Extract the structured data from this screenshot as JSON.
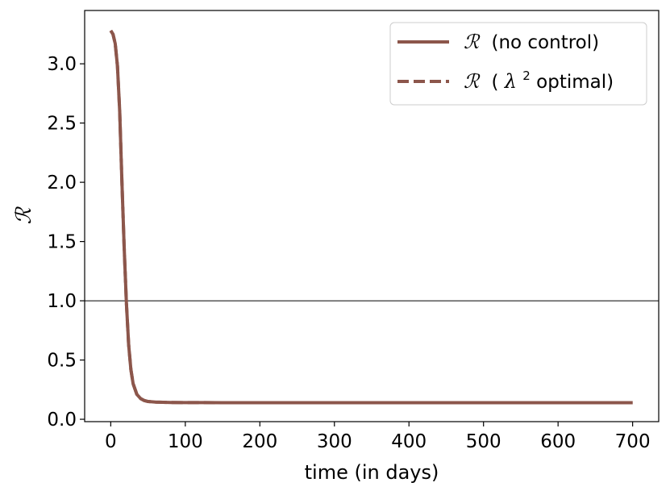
{
  "chart_data": {
    "type": "line",
    "xlabel": "time (in days)",
    "ylabel": "ℛ",
    "xlim": [
      -35,
      735
    ],
    "ylim": [
      -0.02,
      3.45
    ],
    "xticks": [
      0,
      100,
      200,
      300,
      400,
      500,
      600,
      700
    ],
    "yticks": [
      0.0,
      0.5,
      1.0,
      1.5,
      2.0,
      2.5,
      3.0
    ],
    "xtick_labels": [
      "0",
      "100",
      "200",
      "300",
      "400",
      "500",
      "600",
      "700"
    ],
    "ytick_labels": [
      "0.0",
      "0.5",
      "1.0",
      "1.5",
      "2.0",
      "2.5",
      "3.0"
    ],
    "reference_line": {
      "y": 1.0,
      "color": "#000000"
    },
    "legend_position": "top-right",
    "grid": false,
    "series": [
      {
        "name": "ℛ (no control)",
        "legend_symbol": "ℛ",
        "legend_text": "(no control)",
        "style": "solid",
        "color": "#8c564b",
        "x": [
          0,
          3,
          6,
          9,
          12,
          15,
          18,
          21,
          24,
          27,
          30,
          35,
          40,
          45,
          50,
          60,
          70,
          80,
          100,
          150,
          200,
          300,
          400,
          500,
          600,
          700
        ],
        "y": [
          3.28,
          3.25,
          3.17,
          2.98,
          2.6,
          2.0,
          1.45,
          0.98,
          0.63,
          0.42,
          0.3,
          0.21,
          0.175,
          0.158,
          0.15,
          0.145,
          0.143,
          0.142,
          0.141,
          0.14,
          0.14,
          0.14,
          0.14,
          0.14,
          0.14,
          0.14
        ]
      },
      {
        "name": "ℛ (λ² optimal)",
        "legend_symbol": "ℛ",
        "legend_text_before": "(",
        "legend_lambda": "λ",
        "legend_sup": "2",
        "legend_text_after": " optimal)",
        "style": "dashed",
        "color": "#8c564b",
        "x": [
          0,
          3,
          6,
          9,
          12,
          15,
          18,
          21,
          24,
          27,
          30,
          35,
          40,
          45,
          50,
          60,
          70,
          80,
          100,
          150,
          200,
          300,
          400,
          500,
          600,
          700
        ],
        "y": [
          3.28,
          3.25,
          3.17,
          2.98,
          2.6,
          2.0,
          1.45,
          0.98,
          0.63,
          0.42,
          0.3,
          0.21,
          0.175,
          0.158,
          0.15,
          0.145,
          0.143,
          0.142,
          0.141,
          0.14,
          0.14,
          0.14,
          0.14,
          0.14,
          0.14,
          0.14
        ]
      }
    ]
  }
}
